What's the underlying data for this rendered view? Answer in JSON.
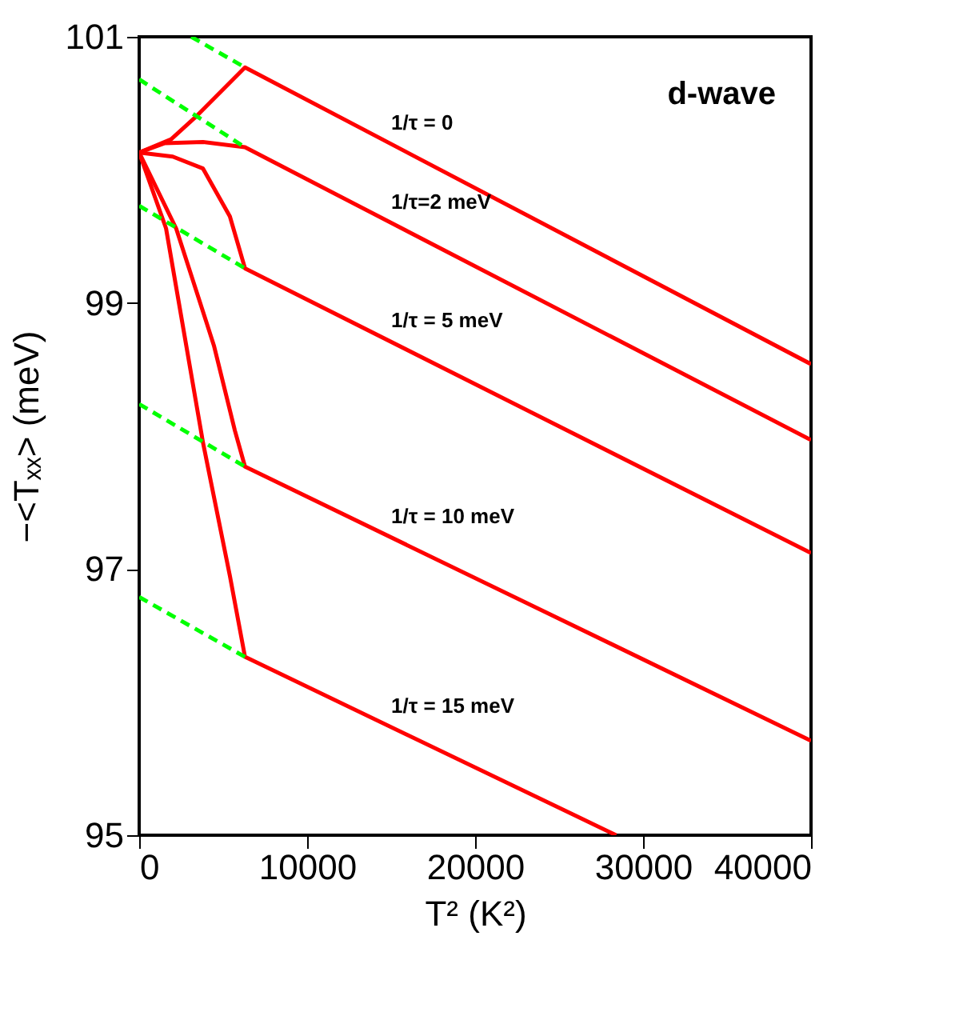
{
  "chart_data": {
    "type": "line",
    "xlabel": "T² (K²)",
    "ylabel": "−<Tₓₓ> (meV)",
    "xlim": [
      0,
      40000
    ],
    "ylim": [
      95,
      101
    ],
    "xticks": [
      0,
      10000,
      20000,
      30000,
      40000
    ],
    "yticks": [
      95,
      97,
      99,
      101
    ],
    "grid": false,
    "marker": "none",
    "series": [
      {
        "name": "1/τ = 0",
        "color": "#ff0000",
        "line_style": "solid",
        "x": [
          0,
          1900,
          3300,
          6300,
          40000
        ],
        "values": [
          100.13,
          100.23,
          100.39,
          100.77,
          98.54
        ]
      },
      {
        "name": "1/τ=2 meV",
        "color": "#ff0000",
        "line_style": "solid",
        "x": [
          0,
          1500,
          3800,
          6300,
          40000
        ],
        "values": [
          100.13,
          100.2,
          100.21,
          100.17,
          97.97
        ]
      },
      {
        "name": "1/τ = 5 meV",
        "color": "#ff0000",
        "line_style": "solid",
        "x": [
          0,
          2000,
          3800,
          5400,
          6300,
          40000
        ],
        "values": [
          100.13,
          100.1,
          100.01,
          99.65,
          99.26,
          97.12
        ]
      },
      {
        "name": "1/τ = 10 meV",
        "color": "#ff0000",
        "line_style": "solid",
        "x": [
          0,
          2200,
          4450,
          5700,
          6300,
          40000
        ],
        "values": [
          100.13,
          99.56,
          98.68,
          98.04,
          97.77,
          95.71
        ]
      },
      {
        "name": "1/τ = 15 meV",
        "color": "#ff0000",
        "line_style": "solid",
        "x": [
          0,
          1600,
          3800,
          5400,
          6300,
          28400
        ],
        "values": [
          100.13,
          99.56,
          97.95,
          96.95,
          96.34,
          95.0
        ]
      },
      {
        "color": "#00ff00",
        "line_style": "dashed",
        "x": [
          3100,
          6300
        ],
        "values": [
          101.0,
          100.77
        ]
      },
      {
        "color": "#00ff00",
        "line_style": "dashed",
        "x": [
          0,
          6300
        ],
        "values": [
          100.68,
          100.17
        ]
      },
      {
        "color": "#00ff00",
        "line_style": "dashed",
        "x": [
          0,
          6300
        ],
        "values": [
          99.73,
          99.26
        ]
      },
      {
        "color": "#00ff00",
        "line_style": "dashed",
        "x": [
          0,
          6300
        ],
        "values": [
          98.24,
          97.77
        ]
      },
      {
        "color": "#00ff00",
        "line_style": "dashed",
        "x": [
          0,
          6300
        ],
        "values": [
          96.79,
          96.34
        ]
      }
    ],
    "annotations": [
      "d-wave"
    ]
  }
}
